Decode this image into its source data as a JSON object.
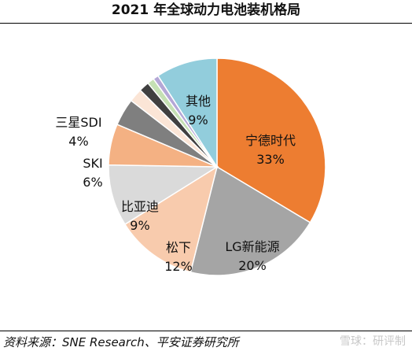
{
  "chart_data": {
    "type": "pie",
    "title": "2021 年全球动力电池装机格局",
    "slices": [
      {
        "label": "宁德时代",
        "pct_label": "33%",
        "value": 33,
        "color": "#ED7D31",
        "label_color": "#111111"
      },
      {
        "label": "LG新能源",
        "pct_label": "20%",
        "value": 20,
        "color": "#A5A5A5",
        "label_color": "#111111"
      },
      {
        "label": "松下",
        "pct_label": "12%",
        "value": 12,
        "color": "#F8CBAD",
        "label_color": "#111111"
      },
      {
        "label": "比亚迪",
        "pct_label": "9%",
        "value": 9,
        "color": "#DADADA",
        "label_color": "#111111"
      },
      {
        "label": "SKI",
        "pct_label": "6%",
        "value": 6,
        "color": "#F4B183",
        "label_color": "#111111"
      },
      {
        "label": "三星SDI",
        "pct_label": "4%",
        "value": 4,
        "color": "#7F7F7F",
        "label_color": "#111111"
      },
      {
        "label": "",
        "pct_label": "",
        "value": 2,
        "color": "#FBE5D6",
        "label_color": "#111111"
      },
      {
        "label": "",
        "pct_label": "",
        "value": 1.5,
        "color": "#404040",
        "label_color": "#111111"
      },
      {
        "label": "",
        "pct_label": "",
        "value": 1,
        "color": "#C5E0B4",
        "label_color": "#111111"
      },
      {
        "label": "",
        "pct_label": "",
        "value": 0.8,
        "color": "#B4A7D6",
        "label_color": "#111111"
      },
      {
        "label": "其他",
        "pct_label": "9%",
        "value": 9,
        "color": "#92CDDC",
        "label_color": "#111111"
      }
    ],
    "start_angle_deg": 0,
    "direction": "clockwise",
    "legend": "none"
  },
  "footer": {
    "source": "资料来源：SNE Research、平安证券研究所",
    "watermark": "雪球：研评制"
  }
}
